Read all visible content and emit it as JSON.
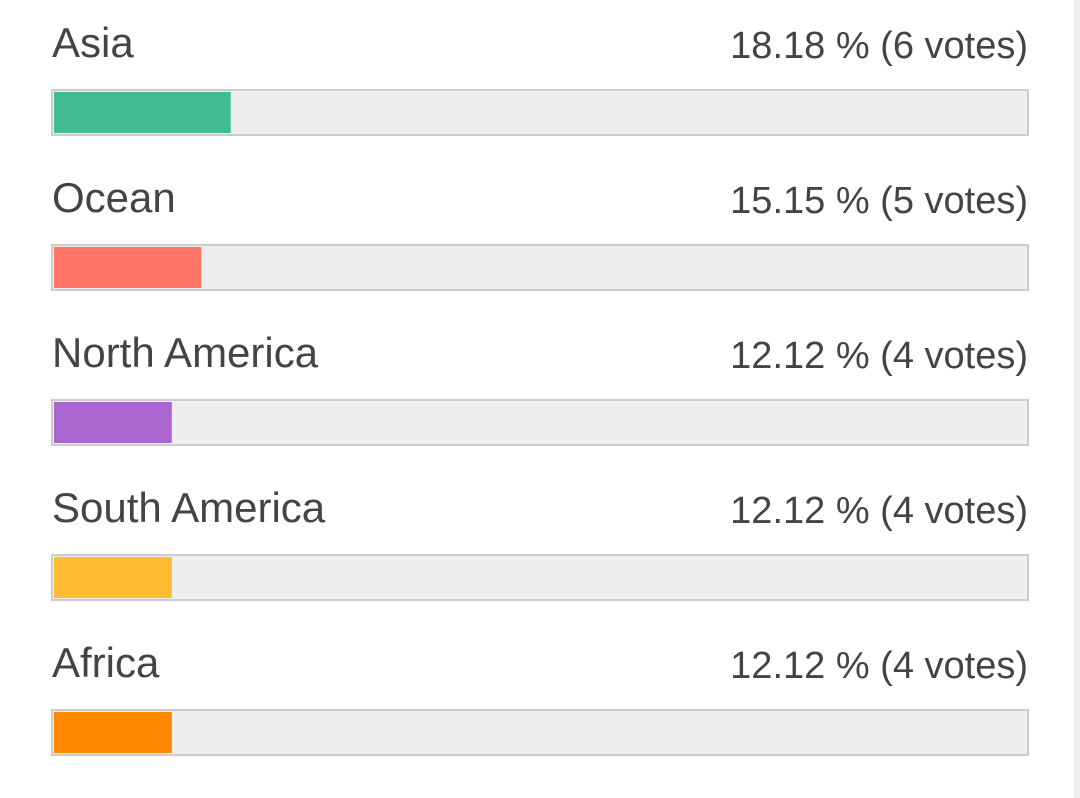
{
  "chart_data": {
    "type": "bar",
    "orientation": "horizontal",
    "categories": [
      "Asia",
      "Ocean",
      "North America",
      "South America",
      "Africa"
    ],
    "values": [
      18.18,
      15.15,
      12.12,
      12.12,
      12.12
    ],
    "value_labels": [
      "18.18 % (6 votes)",
      "15.15 % (5 votes)",
      "12.12 % (4 votes)",
      "12.12 % (4 votes)",
      "12.12 % (4 votes)"
    ],
    "colors": [
      "#41bb91",
      "#ff7465",
      "#a966cf",
      "#ffbb33",
      "#ff8800"
    ],
    "xlim": [
      0,
      100
    ]
  }
}
